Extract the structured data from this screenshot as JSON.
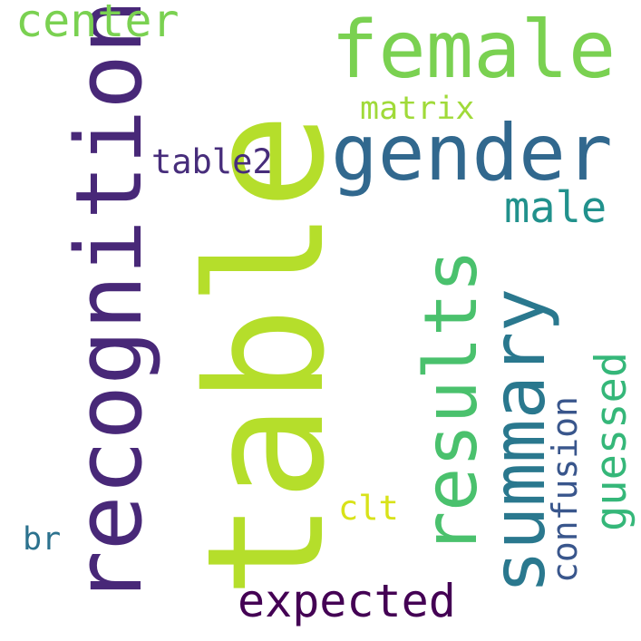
{
  "words": [
    {
      "text": "table",
      "color": "#b5de2b"
    },
    {
      "text": "recognition",
      "color": "#482878"
    },
    {
      "text": "female",
      "color": "#7ad151"
    },
    {
      "text": "gender",
      "color": "#31688e"
    },
    {
      "text": "summary",
      "color": "#2a788e"
    },
    {
      "text": "results",
      "color": "#4ac16d"
    },
    {
      "text": "expected",
      "color": "#440154"
    },
    {
      "text": "center",
      "color": "#7ad151"
    },
    {
      "text": "guessed",
      "color": "#35b779"
    },
    {
      "text": "male",
      "color": "#21918c"
    },
    {
      "text": "confusion",
      "color": "#39568c"
    },
    {
      "text": "table2",
      "color": "#472d7b"
    },
    {
      "text": "matrix",
      "color": "#a0da39"
    },
    {
      "text": "clt",
      "color": "#d8e219"
    },
    {
      "text": "br",
      "color": "#2c728e"
    }
  ]
}
